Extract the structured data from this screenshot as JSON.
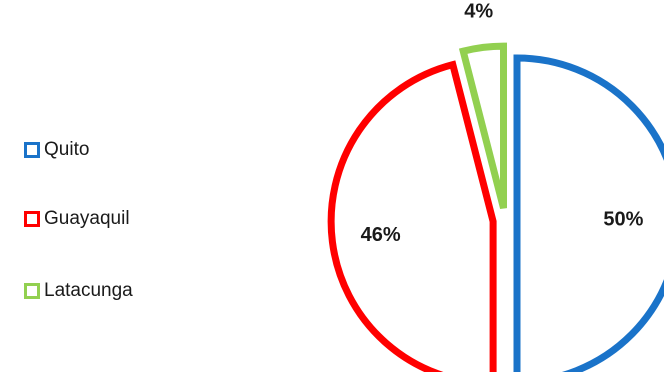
{
  "chart_data": {
    "type": "pie",
    "title": "",
    "style": "exploded, outline only",
    "slices": [
      {
        "label": "Quito",
        "value": 50,
        "value_label": "50%",
        "color": "#1a73c9"
      },
      {
        "label": "Guayaquil",
        "value": 46,
        "value_label": "46%",
        "color": "#ff0000"
      },
      {
        "label": "Latacunga",
        "value": 4,
        "value_label": "4%",
        "color": "#92d050"
      }
    ],
    "legend": {
      "placement": "left"
    }
  }
}
